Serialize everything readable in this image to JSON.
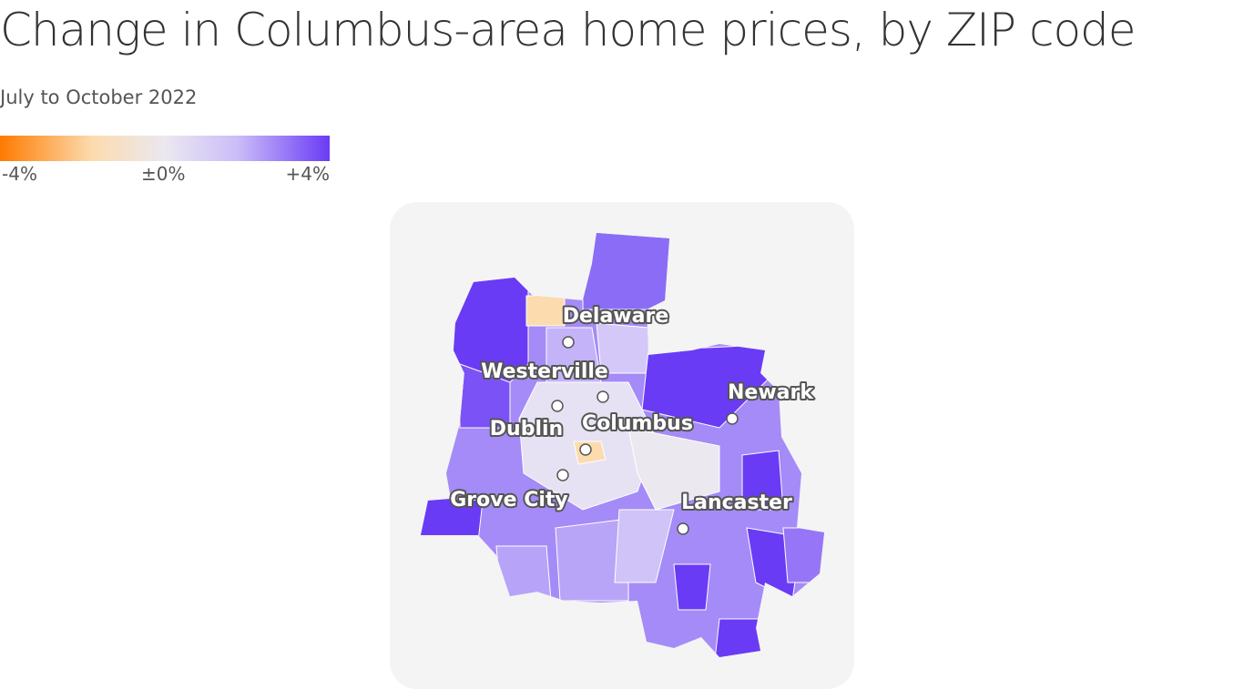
{
  "header": {
    "title": "Change in Columbus-area home prices, by ZIP code",
    "subtitle": "July to October 2022"
  },
  "legend": {
    "labels": [
      "-4%",
      "±0%",
      "+4%"
    ]
  },
  "cities": [
    {
      "label": "Delaware"
    },
    {
      "label": "Westerville"
    },
    {
      "label": "Dublin"
    },
    {
      "label": "Columbus"
    },
    {
      "label": "Grove City"
    },
    {
      "label": "Newark"
    },
    {
      "label": "Lancaster"
    }
  ]
}
